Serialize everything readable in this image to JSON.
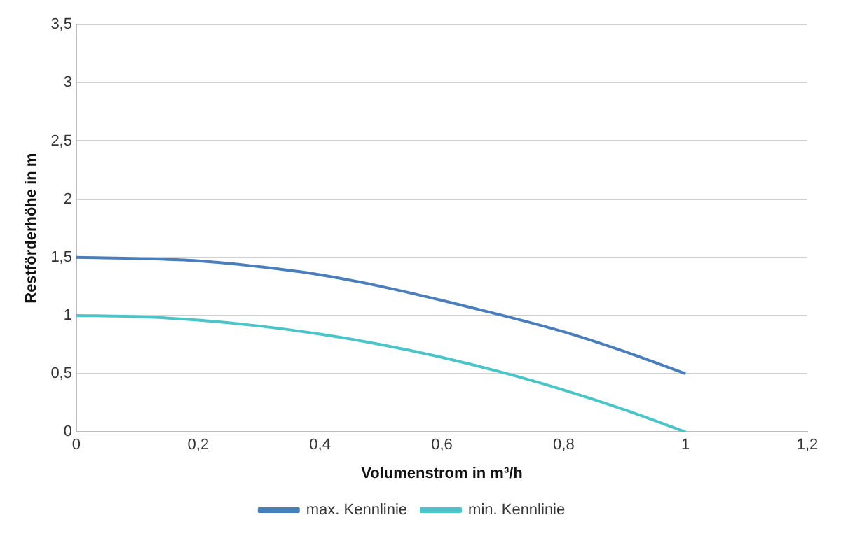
{
  "chart_data": {
    "type": "line",
    "xlabel": "Volumenstrom in m³/h",
    "ylabel": "Restförderhöhe in m",
    "x": [
      0,
      0.1,
      0.2,
      0.3,
      0.4,
      0.5,
      0.6,
      0.7,
      0.8,
      0.9,
      1
    ],
    "series": [
      {
        "name": "max. Kennlinie",
        "color": "#4a7ebb",
        "values": [
          1.5,
          1.49,
          1.47,
          1.42,
          1.35,
          1.25,
          1.13,
          1.0,
          0.86,
          0.69,
          0.5
        ]
      },
      {
        "name": "min. Kennlinie",
        "color": "#4bc4c8",
        "values": [
          1.0,
          0.99,
          0.96,
          0.91,
          0.84,
          0.75,
          0.64,
          0.51,
          0.36,
          0.19,
          0.0
        ]
      }
    ],
    "xlim": [
      0,
      1.2
    ],
    "xticks": [
      0,
      {
        "value": 0.2,
        "label": "0,2"
      },
      {
        "value": 0.4,
        "label": "0,4"
      },
      {
        "value": 0.6,
        "label": "0,6"
      },
      {
        "value": 0.8,
        "label": "0,8"
      },
      1,
      {
        "value": 1.2,
        "label": "1,2"
      }
    ],
    "ylim": [
      0,
      3.5
    ],
    "yticks": [
      0,
      {
        "value": 0.5,
        "label": "0,5"
      },
      1,
      {
        "value": 1.5,
        "label": "1,5"
      },
      2,
      {
        "value": 2.5,
        "label": "2,5"
      },
      3,
      {
        "value": 3.5,
        "label": "3,5"
      }
    ],
    "grid": "y",
    "legend": "bottom",
    "marker": "none",
    "line_style": "solid"
  }
}
